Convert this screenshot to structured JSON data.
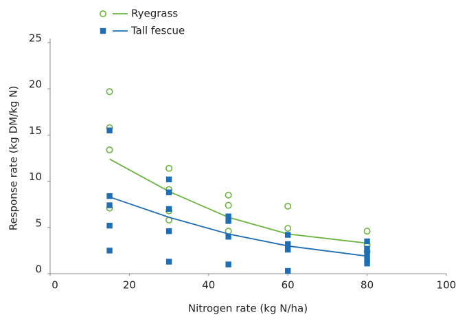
{
  "chart_data": {
    "type": "scatter",
    "x_label": "Nitrogen rate (kg N/ha)",
    "y_label": "Response rate (kg DM/kg N)",
    "xlim": [
      0,
      100
    ],
    "xticks": [
      0,
      20,
      40,
      60,
      80,
      100
    ],
    "ylim": [
      0,
      25
    ],
    "yticks": [
      0,
      5,
      10,
      15,
      20,
      25
    ],
    "grid": false,
    "legend": "top left",
    "series": [
      {
        "name": "Ryegrass",
        "color": "#6ab43e",
        "marker": "circle",
        "x": [
          15,
          15,
          15,
          15,
          30,
          30,
          30,
          30,
          45,
          45,
          45,
          60,
          60,
          80,
          80,
          80
        ],
        "values": [
          19.7,
          15.8,
          13.4,
          7.1,
          11.4,
          9.1,
          6.8,
          5.8,
          8.5,
          7.4,
          4.6,
          7.3,
          4.9,
          4.6,
          3.1,
          2.4
        ],
        "trend": {
          "x": [
            15,
            30,
            45,
            60,
            80
          ],
          "values": [
            12.4,
            8.9,
            6.1,
            4.3,
            3.3
          ]
        }
      },
      {
        "name": "Tall fescue",
        "color": "#1f6db5",
        "marker": "square",
        "x": [
          15,
          15,
          15,
          15,
          15,
          30,
          30,
          30,
          30,
          30,
          45,
          45,
          45,
          45,
          60,
          60,
          60,
          60,
          80,
          80,
          80,
          80,
          80
        ],
        "values": [
          15.5,
          8.4,
          7.4,
          5.2,
          2.5,
          10.2,
          8.8,
          7.0,
          4.6,
          1.3,
          6.2,
          5.7,
          4.0,
          1.0,
          4.2,
          3.2,
          2.6,
          0.3,
          3.5,
          2.7,
          2.1,
          1.5,
          1.1
        ],
        "trend": {
          "x": [
            15,
            30,
            45,
            60,
            80
          ],
          "values": [
            8.3,
            6.1,
            4.3,
            3.0,
            1.9
          ]
        }
      }
    ]
  }
}
